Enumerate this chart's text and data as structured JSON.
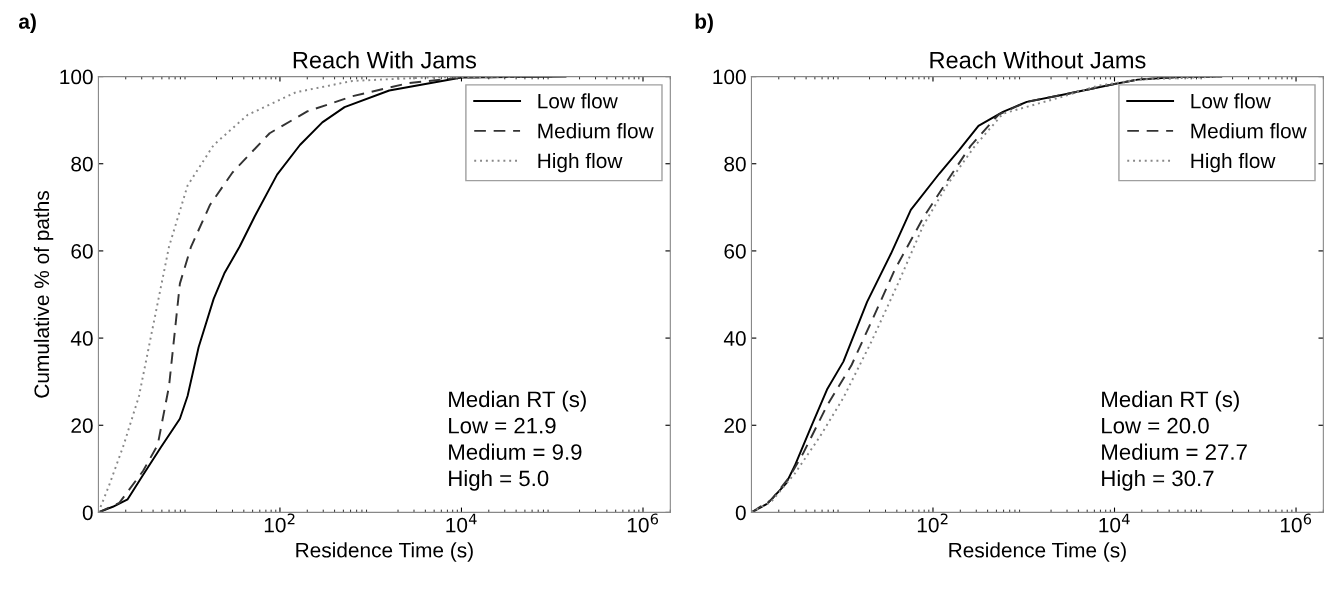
{
  "chart_data": [
    {
      "type": "line",
      "title": "Reach With Jams",
      "xlabel": "Residence Time (s)",
      "ylabel": "Cumulative % of paths",
      "log": "x",
      "grid": false,
      "legend": "top right",
      "xlim": [
        1,
        2000000
      ],
      "ylim": [
        0,
        100
      ],
      "xticks": [
        {
          "value": 100,
          "label": "10$^{2}$"
        },
        {
          "value": 10000,
          "label": "10$^{4}$"
        },
        {
          "value": 1000000,
          "label": "10$^{6}$"
        }
      ],
      "yticks": [
        0,
        20,
        40,
        60,
        80,
        100
      ],
      "annotations": [
        "a)",
        "Median RT (s)\nLow = 21.9\nMedium = 9.9\nHigh = 5.0"
      ],
      "series": [
        {
          "name": "Low flow",
          "color": "#000000",
          "line_style": "solid",
          "x": [
            1,
            1.44,
            2.1,
            3.1,
            4.9,
            7.9,
            9.6,
            12.7,
            18.6,
            24.6,
            36,
            53,
            93,
            166,
            293,
            515,
            1600,
            10000,
            140000
          ],
          "values": [
            0,
            1.3,
            3,
            8.6,
            15,
            21.5,
            26.7,
            37.9,
            49,
            55,
            61,
            68,
            77.5,
            84.3,
            89.5,
            93,
            96.8,
            99.8,
            100
          ]
        },
        {
          "name": "Medium flow",
          "color": "#333333",
          "line_style": "dashed",
          "x": [
            1,
            1.7,
            3.1,
            4.5,
            6,
            7.9,
            10.5,
            17,
            30,
            77,
            200,
            630,
            2600,
            10000,
            100000
          ],
          "values": [
            0,
            2.2,
            9.5,
            15.5,
            29,
            52.5,
            61,
            70.6,
            78,
            87,
            92,
            95.5,
            98.5,
            99.8,
            100
          ]
        },
        {
          "name": "High flow",
          "color": "#888888",
          "line_style": "dotted",
          "x": [
            1,
            1.3,
            1.9,
            2.8,
            4.1,
            6,
            9.6,
            18.6,
            44,
            150,
            630,
            4200,
            50000
          ],
          "values": [
            0,
            6,
            15.5,
            26.7,
            43.9,
            61,
            75,
            84.3,
            91.2,
            96.4,
            99,
            99.8,
            100
          ]
        }
      ]
    },
    {
      "type": "line",
      "title": "Reach Without Jams",
      "xlabel": "Residence Time (s)",
      "log": "x",
      "grid": false,
      "legend": "top right",
      "xlim": [
        1,
        2000000
      ],
      "ylim": [
        0,
        100
      ],
      "xticks": [
        {
          "value": 100,
          "label": "10$^{2}$"
        },
        {
          "value": 10000,
          "label": "10$^{4}$"
        },
        {
          "value": 1000000,
          "label": "10$^{6}$"
        }
      ],
      "yticks": [
        0,
        20,
        40,
        60,
        80,
        100
      ],
      "annotations": [
        "b)",
        "Median RT (s)\nLow = 20.0\nMedium = 27.7\nHigh = 30.7"
      ],
      "series": [
        {
          "name": "Low flow",
          "color": "#000000",
          "line_style": "solid",
          "x": [
            1,
            1.5,
            2.4,
            3.0,
            4.6,
            6.8,
            10.3,
            18.8,
            34.5,
            57,
            117,
            195,
            317,
            590,
            1080,
            2960,
            10000,
            18000,
            50000,
            150000
          ],
          "values": [
            0,
            2,
            6.6,
            10.7,
            19.9,
            28.2,
            34.6,
            48.3,
            59.4,
            69.4,
            77.7,
            83.2,
            88.7,
            91.9,
            94.2,
            96,
            98.3,
            99.3,
            99.9,
            100
          ]
        },
        {
          "name": "Medium flow",
          "color": "#333333",
          "line_style": "dashed",
          "x": [
            1,
            1.66,
            2.6,
            3.7,
            6.8,
            12.6,
            21,
            38,
            78,
            142,
            260,
            530,
            1080,
            2960,
            10000,
            18000,
            50000,
            150000
          ],
          "values": [
            0,
            2.9,
            8,
            13.5,
            24.5,
            33.7,
            43.8,
            55.7,
            67.6,
            75.9,
            84.1,
            91.3,
            94.2,
            96,
            98.3,
            99.3,
            99.9,
            100
          ]
        },
        {
          "name": "High flow",
          "color": "#888888",
          "line_style": "dotted",
          "x": [
            1,
            1.66,
            3.0,
            5.6,
            10.3,
            21,
            42,
            78,
            142,
            290,
            590,
            2400,
            6600,
            18000,
            150000
          ],
          "values": [
            0,
            2.5,
            8.9,
            17.2,
            26.3,
            39.2,
            52.9,
            65.8,
            75,
            84.1,
            91.5,
            95.1,
            97.9,
            99.3,
            100
          ]
        }
      ]
    }
  ]
}
